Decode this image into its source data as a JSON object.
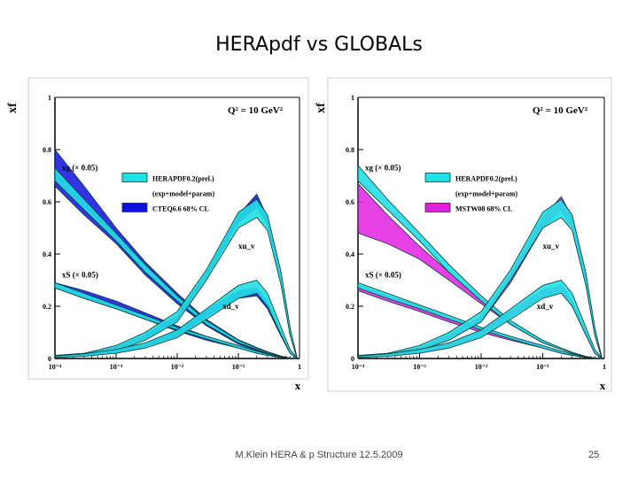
{
  "slide": {
    "title": "HERApdf vs GLOBALs",
    "footer": "M.Klein HERA & p Structure 12.5.2009",
    "page_number": "25"
  },
  "colors": {
    "hera_band": "#22e0e6",
    "cteq_band": "#1010e0",
    "mstw_band": "#e020e0",
    "outline": "#0a3a3a"
  },
  "chart_data": [
    {
      "type": "line",
      "title": "Q² = 10 GeV²",
      "xlabel": "x",
      "ylabel": "xf",
      "x_scale": "log",
      "xlim": [
        0.0001,
        1
      ],
      "ylim": [
        0,
        1
      ],
      "xticks": [
        "10⁻⁴",
        "10⁻³",
        "10⁻²",
        "10⁻¹",
        "1"
      ],
      "yticks": [
        "0",
        "0.2",
        "0.4",
        "0.6",
        "0.8",
        "1"
      ],
      "annotations": [
        "xg (× 0.05)",
        "xS (× 0.05)",
        "xu_v",
        "xd_v"
      ],
      "legend": [
        "HERAPDF0.2(prel.)",
        "(exp+model+param)",
        "CTEQ6.6 68% CL"
      ],
      "x": [
        0.0001,
        0.0003,
        0.001,
        0.003,
        0.01,
        0.03,
        0.1,
        0.2,
        0.3,
        0.5,
        0.7,
        0.9
      ],
      "series": [
        {
          "name": "xg (× 0.05) HERAPDF",
          "band": "hera",
          "lo": [
            0.68,
            0.57,
            0.45,
            0.33,
            0.22,
            0.13,
            0.06,
            0.035,
            0.02,
            0.006,
            0.001,
            0
          ],
          "hi": [
            0.73,
            0.61,
            0.48,
            0.36,
            0.24,
            0.145,
            0.07,
            0.04,
            0.024,
            0.008,
            0.002,
            0
          ]
        },
        {
          "name": "xg (× 0.05) CTEQ6.6",
          "band": "global",
          "lo": [
            0.66,
            0.55,
            0.44,
            0.32,
            0.21,
            0.125,
            0.055,
            0.03,
            0.018,
            0.005,
            0.001,
            0
          ],
          "hi": [
            0.8,
            0.66,
            0.5,
            0.37,
            0.25,
            0.15,
            0.072,
            0.042,
            0.026,
            0.009,
            0.002,
            0
          ]
        },
        {
          "name": "xS (× 0.05) HERAPDF",
          "band": "hera",
          "lo": [
            0.27,
            0.23,
            0.19,
            0.15,
            0.11,
            0.075,
            0.04,
            0.02,
            0.012,
            0.004,
            0.001,
            0
          ],
          "hi": [
            0.29,
            0.25,
            0.205,
            0.165,
            0.12,
            0.085,
            0.05,
            0.028,
            0.017,
            0.006,
            0.002,
            0
          ]
        },
        {
          "name": "xS (× 0.05) CTEQ6.6",
          "band": "global",
          "lo": [
            0.27,
            0.23,
            0.19,
            0.15,
            0.105,
            0.07,
            0.04,
            0.02,
            0.012,
            0.004,
            0.001,
            0
          ],
          "hi": [
            0.29,
            0.26,
            0.22,
            0.175,
            0.125,
            0.085,
            0.05,
            0.028,
            0.017,
            0.006,
            0.002,
            0
          ]
        },
        {
          "name": "xu_v HERAPDF",
          "band": "hera",
          "lo": [
            0.005,
            0.01,
            0.03,
            0.07,
            0.14,
            0.3,
            0.5,
            0.54,
            0.49,
            0.28,
            0.09,
            0.005
          ],
          "hi": [
            0.012,
            0.02,
            0.05,
            0.1,
            0.18,
            0.34,
            0.56,
            0.61,
            0.55,
            0.33,
            0.12,
            0.01
          ]
        },
        {
          "name": "xu_v CTEQ6.6",
          "band": "global",
          "lo": [
            0.008,
            0.015,
            0.035,
            0.075,
            0.145,
            0.31,
            0.52,
            0.58,
            0.51,
            0.29,
            0.09,
            0.005
          ],
          "hi": [
            0.012,
            0.02,
            0.045,
            0.09,
            0.165,
            0.33,
            0.55,
            0.63,
            0.54,
            0.31,
            0.1,
            0.008
          ]
        },
        {
          "name": "xd_v HERAPDF",
          "band": "hera",
          "lo": [
            0.004,
            0.008,
            0.02,
            0.04,
            0.08,
            0.15,
            0.23,
            0.25,
            0.2,
            0.09,
            0.02,
            0.001
          ],
          "hi": [
            0.01,
            0.018,
            0.035,
            0.06,
            0.11,
            0.19,
            0.28,
            0.3,
            0.25,
            0.12,
            0.035,
            0.004
          ]
        },
        {
          "name": "xd_v CTEQ6.6",
          "band": "global",
          "lo": [
            0.005,
            0.01,
            0.022,
            0.045,
            0.085,
            0.16,
            0.23,
            0.24,
            0.19,
            0.085,
            0.02,
            0.001
          ],
          "hi": [
            0.009,
            0.016,
            0.032,
            0.058,
            0.105,
            0.185,
            0.26,
            0.27,
            0.22,
            0.1,
            0.028,
            0.003
          ]
        }
      ]
    },
    {
      "type": "line",
      "title": "Q² = 10 GeV²",
      "xlabel": "x",
      "ylabel": "xf",
      "x_scale": "log",
      "xlim": [
        0.0001,
        1
      ],
      "ylim": [
        0,
        1
      ],
      "xticks": [
        "10⁻⁴",
        "10⁻³",
        "10⁻²",
        "10⁻¹",
        "1"
      ],
      "yticks": [
        "0",
        "0.2",
        "0.4",
        "0.6",
        "0.8",
        "1"
      ],
      "annotations": [
        "xg (× 0.05)",
        "xS (× 0.05)",
        "xu_v",
        "xd_v"
      ],
      "legend": [
        "HERAPDF0.2(prel.)",
        "(exp+model+param)",
        "MSTW08 68% CL"
      ],
      "x": [
        0.0001,
        0.0003,
        0.001,
        0.003,
        0.01,
        0.03,
        0.1,
        0.2,
        0.3,
        0.5,
        0.7,
        0.9
      ],
      "series": [
        {
          "name": "xg (× 0.05) HERAPDF",
          "band": "hera",
          "lo": [
            0.68,
            0.57,
            0.45,
            0.33,
            0.22,
            0.13,
            0.06,
            0.035,
            0.02,
            0.006,
            0.001,
            0
          ],
          "hi": [
            0.74,
            0.61,
            0.48,
            0.36,
            0.24,
            0.145,
            0.07,
            0.04,
            0.024,
            0.008,
            0.002,
            0
          ]
        },
        {
          "name": "xg (× 0.05) MSTW08",
          "band": "global",
          "lo": [
            0.48,
            0.44,
            0.38,
            0.3,
            0.21,
            0.13,
            0.06,
            0.035,
            0.02,
            0.006,
            0.001,
            0
          ],
          "hi": [
            0.67,
            0.55,
            0.43,
            0.33,
            0.23,
            0.14,
            0.065,
            0.038,
            0.022,
            0.007,
            0.002,
            0
          ]
        },
        {
          "name": "xS (× 0.05) HERAPDF",
          "band": "hera",
          "lo": [
            0.27,
            0.23,
            0.19,
            0.15,
            0.11,
            0.075,
            0.04,
            0.02,
            0.012,
            0.004,
            0.001,
            0
          ],
          "hi": [
            0.29,
            0.25,
            0.205,
            0.165,
            0.12,
            0.085,
            0.05,
            0.028,
            0.017,
            0.006,
            0.002,
            0
          ]
        },
        {
          "name": "xS (× 0.05) MSTW08",
          "band": "global",
          "lo": [
            0.26,
            0.22,
            0.18,
            0.14,
            0.1,
            0.07,
            0.04,
            0.02,
            0.012,
            0.004,
            0.001,
            0
          ],
          "hi": [
            0.28,
            0.24,
            0.2,
            0.155,
            0.115,
            0.08,
            0.048,
            0.026,
            0.016,
            0.006,
            0.002,
            0
          ]
        },
        {
          "name": "xu_v HERAPDF",
          "band": "hera",
          "lo": [
            0.005,
            0.01,
            0.03,
            0.07,
            0.14,
            0.3,
            0.5,
            0.54,
            0.49,
            0.28,
            0.09,
            0.005
          ],
          "hi": [
            0.012,
            0.02,
            0.05,
            0.1,
            0.18,
            0.34,
            0.56,
            0.61,
            0.55,
            0.33,
            0.12,
            0.01
          ]
        },
        {
          "name": "xu_v MSTW08",
          "band": "global",
          "lo": [
            0.006,
            0.012,
            0.032,
            0.072,
            0.14,
            0.29,
            0.5,
            0.57,
            0.5,
            0.29,
            0.09,
            0.005
          ],
          "hi": [
            0.01,
            0.018,
            0.042,
            0.088,
            0.16,
            0.32,
            0.54,
            0.62,
            0.54,
            0.31,
            0.1,
            0.008
          ]
        },
        {
          "name": "xd_v HERAPDF",
          "band": "hera",
          "lo": [
            0.004,
            0.008,
            0.02,
            0.04,
            0.08,
            0.15,
            0.23,
            0.25,
            0.2,
            0.09,
            0.02,
            0.001
          ],
          "hi": [
            0.01,
            0.018,
            0.035,
            0.06,
            0.11,
            0.19,
            0.28,
            0.3,
            0.25,
            0.12,
            0.035,
            0.004
          ]
        },
        {
          "name": "xd_v MSTW08",
          "band": "global",
          "lo": [
            0.005,
            0.01,
            0.022,
            0.045,
            0.085,
            0.16,
            0.235,
            0.255,
            0.2,
            0.09,
            0.02,
            0.001
          ],
          "hi": [
            0.009,
            0.016,
            0.032,
            0.058,
            0.105,
            0.18,
            0.26,
            0.28,
            0.22,
            0.1,
            0.028,
            0.003
          ]
        }
      ]
    }
  ]
}
